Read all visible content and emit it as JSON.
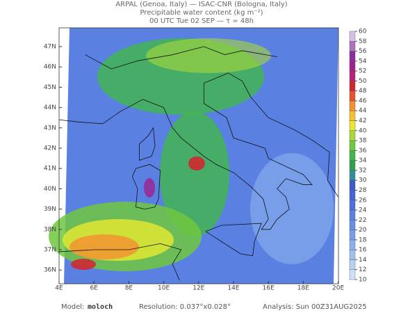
{
  "header": {
    "line1": "ARPAL (Genoa, Italy)  —  ISAC-CNR (Bologna, Italy)",
    "line2": "Precipitable water content (kg m⁻²)",
    "line3": "00 UTC Tue 02 SEP  —  τ = 48h"
  },
  "map": {
    "lat_labels": [
      "47N",
      "46N",
      "45N",
      "44N",
      "43N",
      "42N",
      "41N",
      "40N",
      "39N",
      "38N",
      "37N",
      "36N"
    ],
    "lon_labels": [
      "4E",
      "6E",
      "8E",
      "10E",
      "12E",
      "14E",
      "16E",
      "18E",
      "20E"
    ]
  },
  "colorbar": {
    "levels": [
      10,
      12,
      14,
      16,
      18,
      20,
      22,
      24,
      26,
      28,
      30,
      32,
      34,
      36,
      38,
      40,
      42,
      44,
      46,
      48,
      50,
      52,
      54,
      56,
      58,
      60
    ],
    "colors": [
      "#cfe0fa",
      "#b8d0f5",
      "#a0c0f0",
      "#8cb0ee",
      "#78a0ea",
      "#6890e6",
      "#5a80e2",
      "#4e70dc",
      "#4466d4",
      "#3c5ccc",
      "#2e8e9c",
      "#30a050",
      "#40b848",
      "#70c840",
      "#a8d838",
      "#e8e830",
      "#f8c030",
      "#f49030",
      "#e85030",
      "#d02830",
      "#b8207a",
      "#a02090",
      "#8c2ca0",
      "#b070c0",
      "#d8c0e0"
    ]
  },
  "footer": {
    "model_label": "Model:",
    "model": "moloch",
    "resolution": "Resolution: 0.037°x0.028°",
    "analysis": "Analysis: Sun 00Z31AUG2025"
  }
}
